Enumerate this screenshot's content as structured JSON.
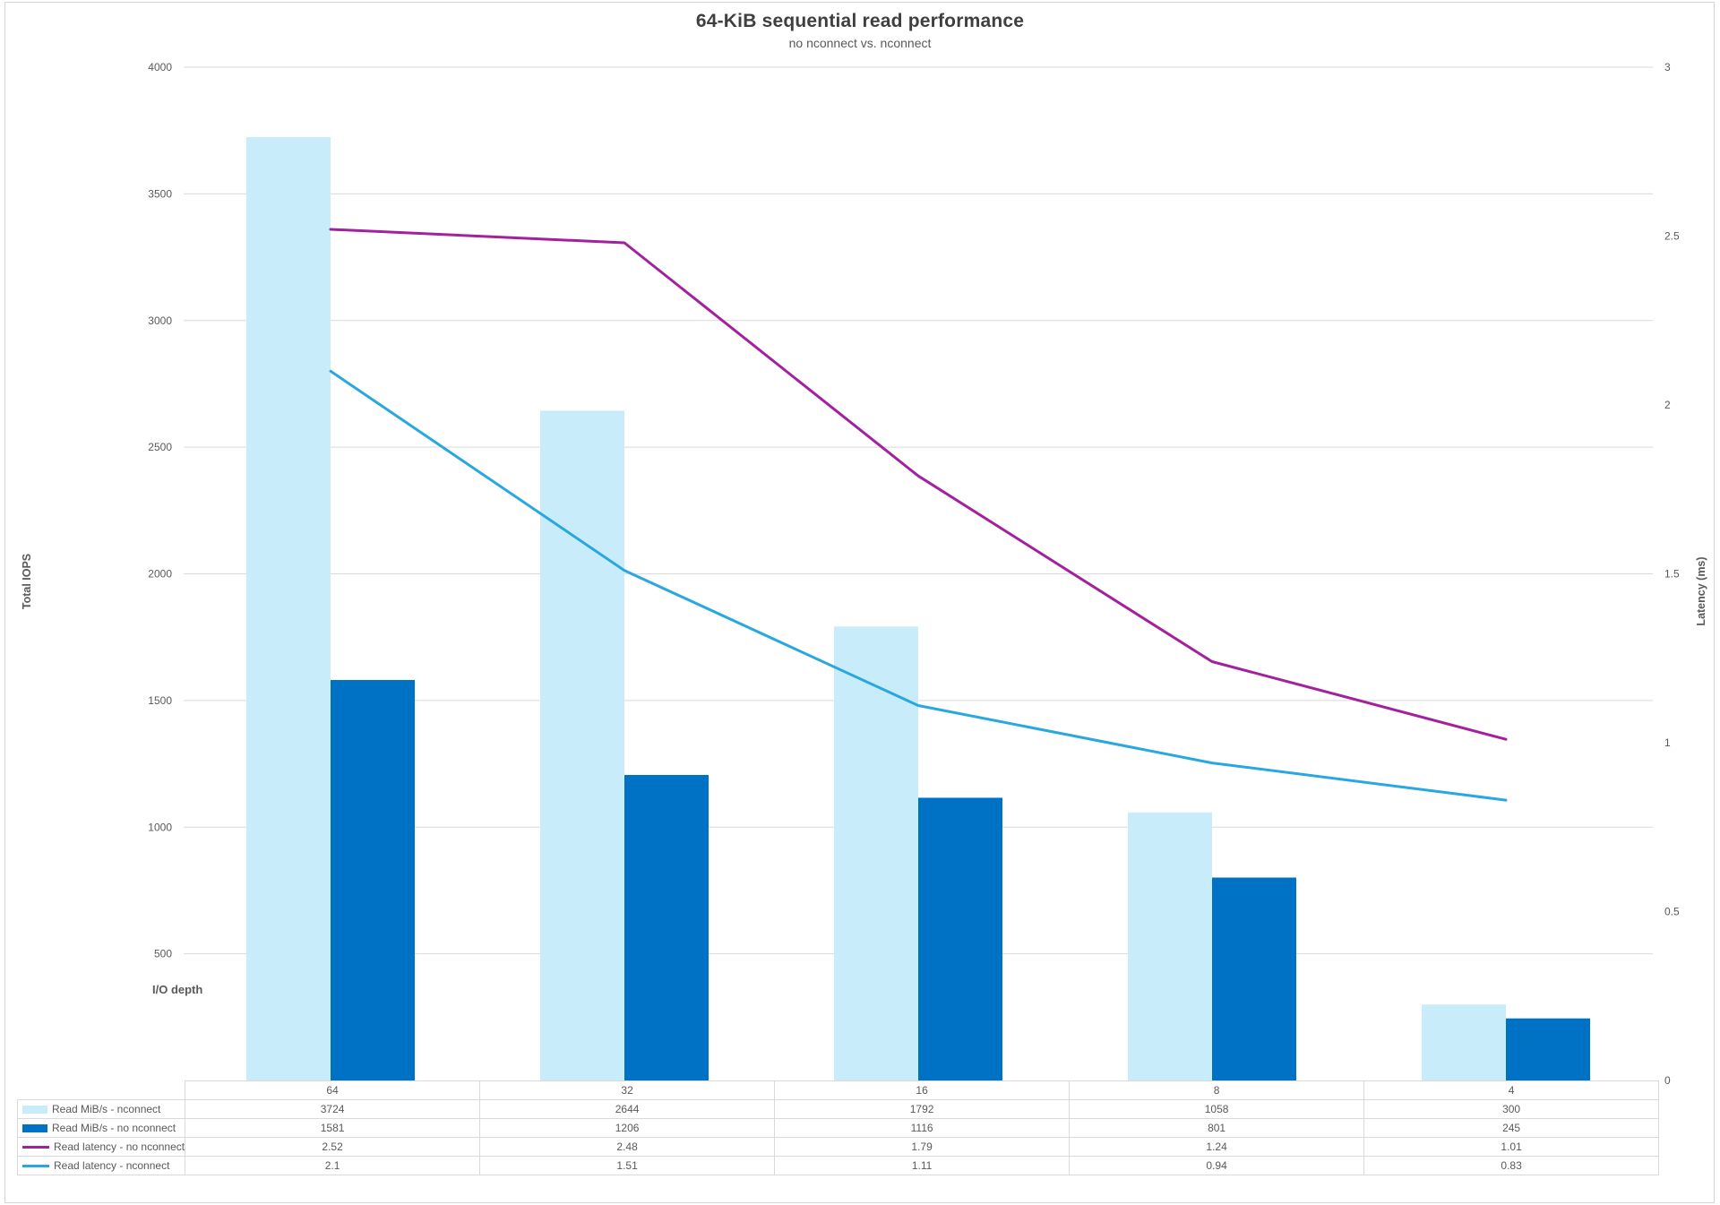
{
  "header": {
    "title": "64-KiB sequential read performance",
    "subtitle": "no nconnect vs. nconnect"
  },
  "axes": {
    "left_title": "Total IOPS",
    "right_title": "Latency (ms)",
    "x_title": "I/O depth",
    "left_tick_labels": [
      "4000",
      "3500",
      "3000",
      "2500",
      "2000",
      "1500",
      "1000",
      "500"
    ],
    "right_tick_labels": [
      "3",
      "2.5",
      "2",
      "1.5",
      "1",
      "0.5",
      "0"
    ]
  },
  "colors": {
    "bar_nconnect": "#c9ecfa",
    "bar_no_nconnect": "#0072c6",
    "line_no_nconnect": "#a3219e",
    "line_nconnect": "#29a8e0",
    "gridline": "#d9d9d9",
    "table_border": "#d9d9d9",
    "text": "#595959",
    "title_text": "#3f3f3f"
  },
  "chart_data": {
    "type": "bar",
    "subtype": "combo-clustered-bar-with-lines",
    "title": "64-KiB sequential read performance",
    "subtitle": "no nconnect vs. nconnect",
    "xlabel": "I/O depth",
    "ylabel_left": "Total IOPS",
    "ylabel_right": "Latency (ms)",
    "ylim_left": [
      0,
      4000
    ],
    "ylim_right": [
      0,
      3
    ],
    "grid": true,
    "legend_position": "table-left",
    "data_table_shown": true,
    "categories": [
      "64",
      "32",
      "16",
      "8",
      "4"
    ],
    "series": [
      {
        "name": "Read MiB/s - nconnect",
        "type": "bar",
        "axis": "left",
        "color": "#c9ecfa",
        "values": [
          3724,
          2644,
          1792,
          1058,
          300
        ]
      },
      {
        "name": "Read MiB/s - no nconnect",
        "type": "bar",
        "axis": "left",
        "color": "#0072c6",
        "values": [
          1581,
          1206,
          1116,
          801,
          245
        ]
      },
      {
        "name": "Read latency - no nconnect",
        "type": "line",
        "axis": "right",
        "color": "#a3219e",
        "values": [
          2.52,
          2.48,
          1.79,
          1.24,
          1.01
        ]
      },
      {
        "name": "Read latency - nconnect",
        "type": "line",
        "axis": "right",
        "color": "#29a8e0",
        "values": [
          2.1,
          1.51,
          1.11,
          0.94,
          0.83
        ]
      }
    ]
  }
}
